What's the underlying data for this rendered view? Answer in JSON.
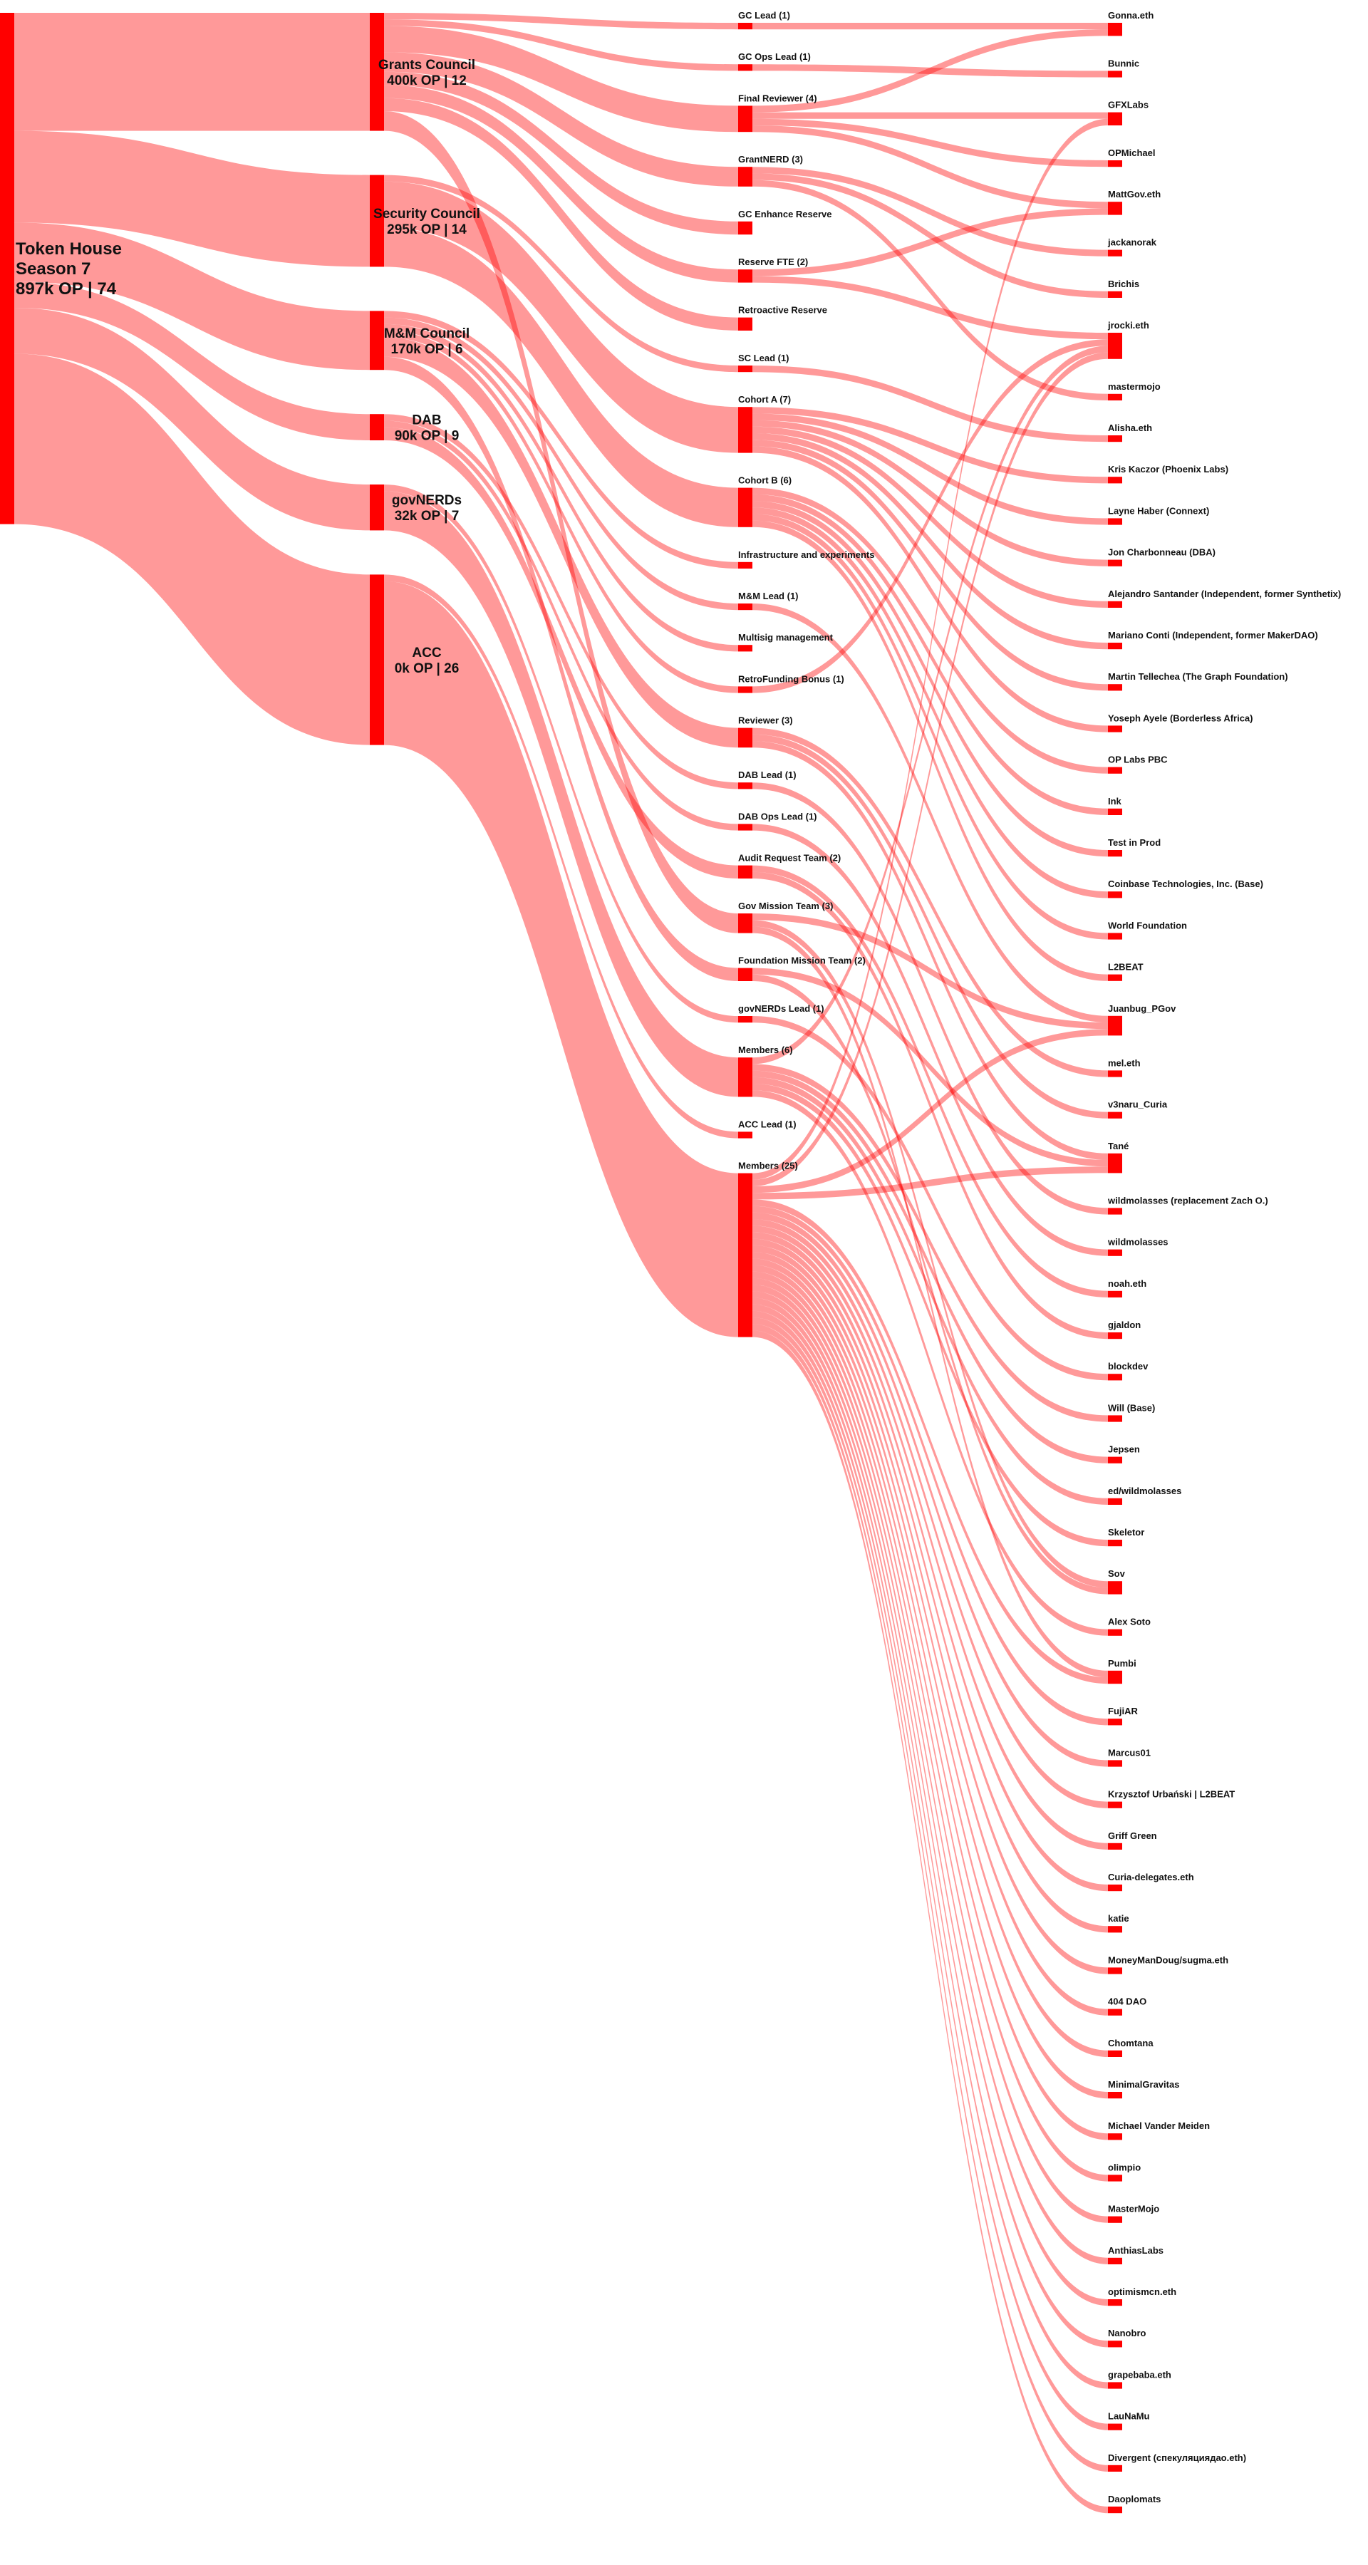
{
  "columns": [
    [
      {
        "lines": [
          "Token House",
          "Season 7",
          "897k OP | 74"
        ],
        "flows": [
          {
            "to": "Grants Council",
            "value": 72
          },
          {
            "to": "Security Council",
            "value": 56
          },
          {
            "to": "M&M Council",
            "value": 36
          },
          {
            "to": "DAB",
            "value": 16
          },
          {
            "to": "govNERDs",
            "value": 28
          },
          {
            "to": "ACC",
            "value": 104
          }
        ]
      }
    ],
    [
      {
        "lines": [
          "Grants Council",
          "400k OP | 12"
        ],
        "flows": [
          {
            "to": "GC Lead (1)",
            "value": 4
          },
          {
            "to": "GC Ops Lead (1)",
            "value": 4
          },
          {
            "to": "Final Reviewer (4)",
            "value": 16
          },
          {
            "to": "GrantNERD (3)",
            "value": 12
          },
          {
            "to": "GC Enhance Reserve",
            "value": 8
          },
          {
            "to": "Reserve FTE (2)",
            "value": 8
          },
          {
            "to": "Retroactive Reserve",
            "value": 8
          },
          {
            "to": "Gov Mission Team (3)",
            "value": 12
          }
        ]
      },
      {
        "lines": [
          "Security Council",
          "295k OP | 14"
        ],
        "flows": [
          {
            "to": "SC Lead (1)",
            "value": 4
          },
          {
            "to": "Cohort A (7)",
            "value": 28
          },
          {
            "to": "Cohort B (6)",
            "value": 24
          }
        ]
      },
      {
        "lines": [
          "M&M Council",
          "170k OP | 6"
        ],
        "flows": [
          {
            "to": "Infrastructure and experiments",
            "value": 4
          },
          {
            "to": "M&M Lead (1)",
            "value": 4
          },
          {
            "to": "Multisig management",
            "value": 4
          },
          {
            "to": "RetroFunding Bonus (1)",
            "value": 4
          },
          {
            "to": "Reviewer (3)",
            "value": 12
          },
          {
            "to": "Foundation Mission Team (2)",
            "value": 8
          }
        ]
      },
      {
        "lines": [
          "DAB",
          "90k OP | 9"
        ],
        "flows": [
          {
            "to": "DAB Lead (1)",
            "value": 4
          },
          {
            "to": "DAB Ops Lead (1)",
            "value": 4
          },
          {
            "to": "Audit Request Team (2)",
            "value": 8
          }
        ]
      },
      {
        "lines": [
          "govNERDs",
          "32k OP | 7"
        ],
        "flows": [
          {
            "to": "govNERDs Lead (1)",
            "value": 4
          },
          {
            "to": "Members (6)",
            "value": 24
          }
        ]
      },
      {
        "lines": [
          "ACC",
          "0k OP | 26"
        ],
        "flows": [
          {
            "to": "ACC Lead (1)",
            "value": 4
          },
          {
            "to": "Members (25)",
            "value": 100
          }
        ]
      }
    ],
    [
      {
        "lines": [
          "GC Lead (1)"
        ],
        "flows": [
          {
            "to": "Gonna.eth",
            "value": 4
          }
        ]
      },
      {
        "lines": [
          "GC Ops Lead (1)"
        ],
        "flows": [
          {
            "to": "Bunnic",
            "value": 4
          }
        ]
      },
      {
        "lines": [
          "Final Reviewer (4)"
        ],
        "flows": [
          {
            "to": "Gonna.eth",
            "value": 4
          },
          {
            "to": "GFXLabs",
            "value": 4
          },
          {
            "to": "OPMichael",
            "value": 4
          },
          {
            "to": "MattGov.eth",
            "value": 4
          }
        ]
      },
      {
        "lines": [
          "GrantNERD (3)"
        ],
        "flows": [
          {
            "to": "jackanorak",
            "value": 4
          },
          {
            "to": "Brichis",
            "value": 4
          },
          {
            "to": "mastermojo",
            "value": 4
          }
        ]
      },
      {
        "lines": [
          "GC Enhance Reserve"
        ]
      },
      {
        "lines": [
          "Reserve FTE (2)"
        ],
        "flows": [
          {
            "to": "MattGov.eth",
            "value": 4
          },
          {
            "to": "jrocki.eth",
            "value": 4
          }
        ]
      },
      {
        "lines": [
          "Retroactive Reserve"
        ]
      },
      {
        "lines": [
          "SC Lead (1)"
        ],
        "flows": [
          {
            "to": "Alisha.eth",
            "value": 4
          }
        ]
      },
      {
        "lines": [
          "Cohort A (7)"
        ],
        "flows": [
          {
            "to": "Kris Kaczor (Phoenix Labs)",
            "value": 4
          },
          {
            "to": "Layne Haber (Connext)",
            "value": 4
          },
          {
            "to": "Jon Charbonneau (DBA)",
            "value": 4
          },
          {
            "to": "Alejandro Santander (Independent, former Synthetix)",
            "value": 4
          },
          {
            "to": "Mariano Conti (Independent, former MakerDAO)",
            "value": 4
          },
          {
            "to": "Martin Tellechea (The Graph Foundation)",
            "value": 4
          },
          {
            "to": "Yoseph Ayele (Borderless Africa)",
            "value": 4
          }
        ]
      },
      {
        "lines": [
          "Cohort B (6)"
        ],
        "flows": [
          {
            "to": "OP Labs PBC",
            "value": 4
          },
          {
            "to": "Ink",
            "value": 4
          },
          {
            "to": "Test in Prod",
            "value": 4
          },
          {
            "to": "Coinbase Technologies, Inc. (Base)",
            "value": 4
          },
          {
            "to": "World Foundation",
            "value": 4
          },
          {
            "to": "L2BEAT",
            "value": 4
          }
        ]
      },
      {
        "lines": [
          "Infrastructure and experiments"
        ]
      },
      {
        "lines": [
          "M&M Lead (1)"
        ],
        "flows": [
          {
            "to": "Juanbug_PGov",
            "value": 4
          }
        ]
      },
      {
        "lines": [
          "Multisig management"
        ]
      },
      {
        "lines": [
          "RetroFunding Bonus (1)"
        ],
        "flows": [
          {
            "to": "jrocki.eth",
            "value": 4
          }
        ]
      },
      {
        "lines": [
          "Reviewer (3)"
        ],
        "flows": [
          {
            "to": "mel.eth",
            "value": 4
          },
          {
            "to": "v3naru_Curia",
            "value": 4
          },
          {
            "to": "Tané",
            "value": 4
          }
        ]
      },
      {
        "lines": [
          "DAB Lead (1)"
        ],
        "flows": [
          {
            "to": "wildmolasses (replacement Zach O.)",
            "value": 4
          }
        ]
      },
      {
        "lines": [
          "DAB Ops Lead (1)"
        ],
        "flows": [
          {
            "to": "wildmolasses",
            "value": 4
          }
        ]
      },
      {
        "lines": [
          "Audit Request Team (2)"
        ],
        "flows": [
          {
            "to": "noah.eth",
            "value": 4
          },
          {
            "to": "gjaldon",
            "value": 4
          }
        ]
      },
      {
        "lines": [
          "Gov Mission Team (3)"
        ],
        "flows": [
          {
            "to": "Juanbug_PGov",
            "value": 4
          },
          {
            "to": "Sov",
            "value": 4
          },
          {
            "to": "Pumbi",
            "value": 4
          }
        ]
      },
      {
        "lines": [
          "Foundation Mission Team (2)"
        ],
        "flows": [
          {
            "to": "Tané",
            "value": 4
          },
          {
            "to": "Sov",
            "value": 4
          }
        ]
      },
      {
        "lines": [
          "govNERDs Lead (1)"
        ],
        "flows": [
          {
            "to": "blockdev",
            "value": 4
          }
        ]
      },
      {
        "lines": [
          "Members (6)"
        ],
        "flows": [
          {
            "to": "jrocki.eth",
            "value": 4
          },
          {
            "to": "Will (Base)",
            "value": 4
          },
          {
            "to": "Jepsen",
            "value": 4
          },
          {
            "to": "ed/wildmolasses",
            "value": 4
          },
          {
            "to": "Skeletor",
            "value": 4
          },
          {
            "to": "Alex Soto",
            "value": 4
          }
        ]
      },
      {
        "lines": [
          "ACC Lead (1)"
        ]
      },
      {
        "lines": [
          "Members (25)"
        ],
        "flows": [
          {
            "to": "GFXLabs",
            "value": 4
          },
          {
            "to": "jrocki.eth",
            "value": 4
          },
          {
            "to": "Juanbug_PGov",
            "value": 4
          },
          {
            "to": "Tané",
            "value": 4
          },
          {
            "to": "Pumbi",
            "value": 4
          },
          {
            "to": "FujiAR",
            "value": 4
          },
          {
            "to": "Marcus01",
            "value": 4
          },
          {
            "to": "Krzysztof Urbański | L2BEAT",
            "value": 4
          },
          {
            "to": "Griff Green",
            "value": 4
          },
          {
            "to": "Curia-delegates.eth",
            "value": 4
          },
          {
            "to": "katie",
            "value": 4
          },
          {
            "to": "MoneyManDoug/sugma.eth",
            "value": 4
          },
          {
            "to": "404 DAO",
            "value": 4
          },
          {
            "to": "Chomtana",
            "value": 4
          },
          {
            "to": "MinimalGravitas",
            "value": 4
          },
          {
            "to": "Michael Vander Meiden",
            "value": 4
          },
          {
            "to": "olimpio",
            "value": 4
          },
          {
            "to": "MasterMojo",
            "value": 4
          },
          {
            "to": "AnthiasLabs",
            "value": 4
          },
          {
            "to": "optimismcn.eth",
            "value": 4
          },
          {
            "to": "Nanobro",
            "value": 4
          },
          {
            "to": "grapebaba.eth",
            "value": 4
          },
          {
            "to": "LauNaMu",
            "value": 4
          },
          {
            "to": "Divergent (спекуляциядао.eth)",
            "value": 4
          },
          {
            "to": "Daoplomats",
            "value": 4
          }
        ]
      }
    ],
    [
      {
        "lines": [
          "Gonna.eth"
        ]
      },
      {
        "lines": [
          "Bunnic"
        ]
      },
      {
        "lines": [
          "GFXLabs"
        ]
      },
      {
        "lines": [
          "OPMichael"
        ]
      },
      {
        "lines": [
          "MattGov.eth"
        ]
      },
      {
        "lines": [
          "jackanorak"
        ]
      },
      {
        "lines": [
          "Brichis"
        ]
      },
      {
        "lines": [
          "jrocki.eth"
        ]
      },
      {
        "lines": [
          "mastermojo"
        ]
      },
      {
        "lines": [
          "Alisha.eth"
        ]
      },
      {
        "lines": [
          "Kris Kaczor (Phoenix Labs)"
        ]
      },
      {
        "lines": [
          "Layne Haber (Connext)"
        ]
      },
      {
        "lines": [
          "Jon Charbonneau (DBA)"
        ]
      },
      {
        "lines": [
          "Alejandro Santander (Independent, former Synthetix)"
        ]
      },
      {
        "lines": [
          "Mariano Conti (Independent, former MakerDAO)"
        ]
      },
      {
        "lines": [
          "Martin Tellechea (The Graph Foundation)"
        ]
      },
      {
        "lines": [
          "Yoseph Ayele (Borderless Africa)"
        ]
      },
      {
        "lines": [
          "OP Labs PBC"
        ]
      },
      {
        "lines": [
          "Ink"
        ]
      },
      {
        "lines": [
          "Test in Prod"
        ]
      },
      {
        "lines": [
          "Coinbase Technologies, Inc. (Base)"
        ]
      },
      {
        "lines": [
          "World Foundation"
        ]
      },
      {
        "lines": [
          "L2BEAT"
        ]
      },
      {
        "lines": [
          "Juanbug_PGov"
        ]
      },
      {
        "lines": [
          "mel.eth"
        ]
      },
      {
        "lines": [
          "v3naru_Curia"
        ]
      },
      {
        "lines": [
          "Tané"
        ]
      },
      {
        "lines": [
          "wildmolasses (replacement Zach O.)"
        ]
      },
      {
        "lines": [
          "wildmolasses"
        ]
      },
      {
        "lines": [
          "noah.eth"
        ]
      },
      {
        "lines": [
          "gjaldon"
        ]
      },
      {
        "lines": [
          "blockdev"
        ]
      },
      {
        "lines": [
          "Will (Base)"
        ]
      },
      {
        "lines": [
          "Jepsen"
        ]
      },
      {
        "lines": [
          "ed/wildmolasses"
        ]
      },
      {
        "lines": [
          "Skeletor"
        ]
      },
      {
        "lines": [
          "Sov"
        ]
      },
      {
        "lines": [
          "Alex Soto"
        ]
      },
      {
        "lines": [
          "Pumbi"
        ]
      },
      {
        "lines": [
          "FujiAR"
        ]
      },
      {
        "lines": [
          "Marcus01"
        ]
      },
      {
        "lines": [
          "Krzysztof Urbański | L2BEAT"
        ]
      },
      {
        "lines": [
          "Griff Green"
        ]
      },
      {
        "lines": [
          "Curia-delegates.eth"
        ]
      },
      {
        "lines": [
          "katie"
        ]
      },
      {
        "lines": [
          "MoneyManDoug/sugma.eth"
        ]
      },
      {
        "lines": [
          "404 DAO"
        ]
      },
      {
        "lines": [
          "Chomtana"
        ]
      },
      {
        "lines": [
          "MinimalGravitas"
        ]
      },
      {
        "lines": [
          "Michael Vander Meiden"
        ]
      },
      {
        "lines": [
          "olimpio"
        ]
      },
      {
        "lines": [
          "MasterMojo"
        ]
      },
      {
        "lines": [
          "AnthiasLabs"
        ]
      },
      {
        "lines": [
          "optimismcn.eth"
        ]
      },
      {
        "lines": [
          "Nanobro"
        ]
      },
      {
        "lines": [
          "grapebaba.eth"
        ]
      },
      {
        "lines": [
          "LauNaMu"
        ]
      },
      {
        "lines": [
          "Divergent (спекуляциядао.eth)"
        ]
      },
      {
        "lines": [
          "Daoplomats"
        ]
      }
    ]
  ]
}
